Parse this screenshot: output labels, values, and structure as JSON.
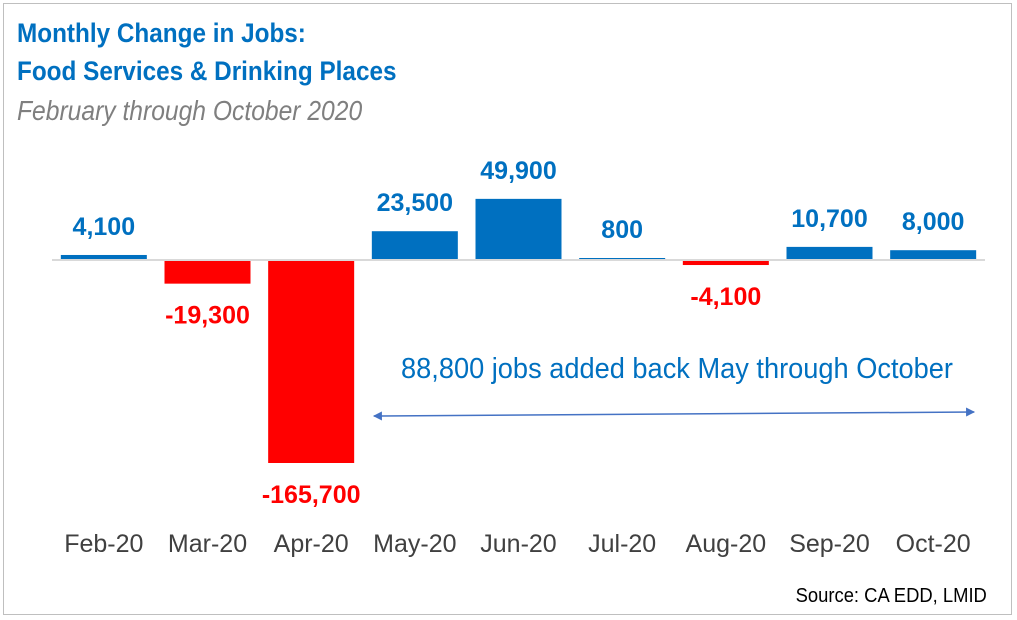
{
  "title_line1": "Monthly Change in Jobs:",
  "title_line2": "Food Services & Drinking Places",
  "subtitle": "February through October 2020",
  "source": "Source: CA EDD, LMID",
  "colors": {
    "positive": "#0070c0",
    "negative": "#ff0000",
    "title": "#0070c0",
    "subtitle": "#7f7f7f",
    "arrow": "#4472c4",
    "baseline": "#d9d9d9"
  },
  "chart_data": {
    "type": "bar",
    "categories": [
      "Feb-20",
      "Mar-20",
      "Apr-20",
      "May-20",
      "Jun-20",
      "Jul-20",
      "Aug-20",
      "Sep-20",
      "Oct-20"
    ],
    "values": [
      4100,
      -19300,
      -165700,
      23500,
      49900,
      800,
      -4100,
      10700,
      8000
    ],
    "data_labels": [
      "4,100",
      "-19,300",
      "-165,700",
      "23,500",
      "49,900",
      "800",
      "-4,100",
      "10,700",
      "8,000"
    ],
    "title": "Monthly Change in Jobs: Food Services & Drinking Places",
    "subtitle": "February through October 2020",
    "xlabel": "",
    "ylabel": "",
    "grid": false,
    "legend": "none",
    "annotation": {
      "text": "88,800 jobs added back May through October",
      "arrow_from_category": "May-20",
      "arrow_to_category": "Oct-20"
    }
  }
}
